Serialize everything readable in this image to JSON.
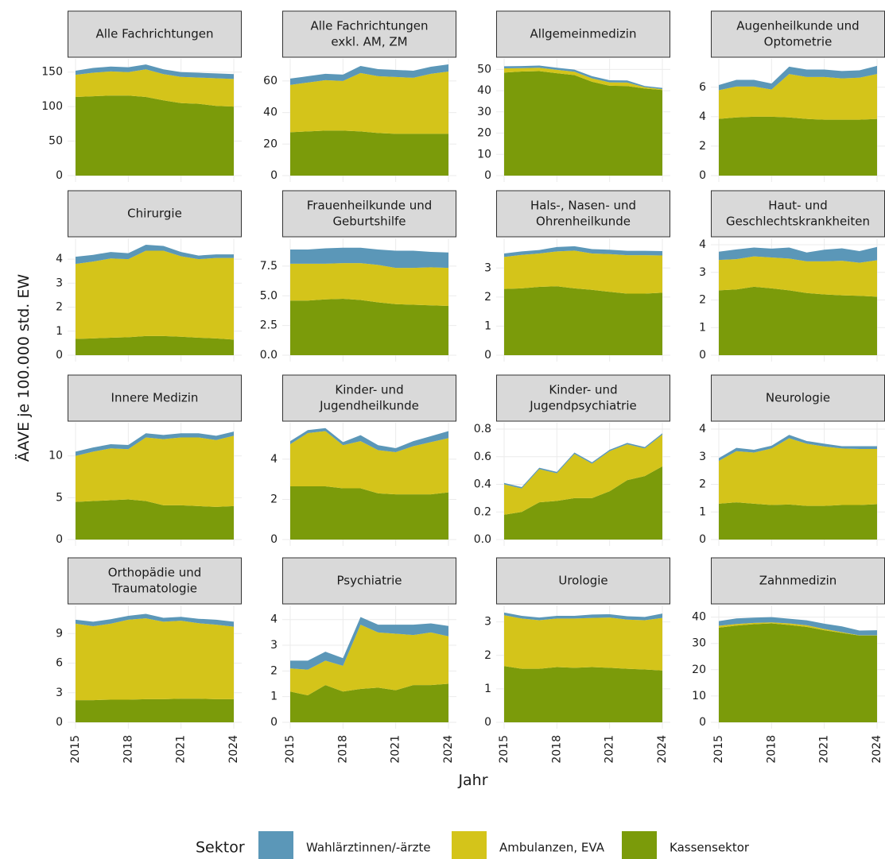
{
  "chart_data": {
    "type": "area",
    "stacked": true,
    "facet_layout": "4x4 grid, free y scales",
    "xlabel": "Jahr",
    "ylabel": "ÄAVE je 100.000 std. EW",
    "x": [
      2015,
      2016,
      2017,
      2018,
      2019,
      2020,
      2021,
      2022,
      2023,
      2024
    ],
    "x_ticks": [
      2015,
      2018,
      2021,
      2024
    ],
    "grid": true,
    "legend": {
      "title": "Sektor",
      "position": "bottom",
      "entries": [
        "Wahlärztinnen/-ärzte",
        "Ambulanzen, EVA",
        "Kassensektor"
      ]
    },
    "series_order": [
      "Kassensektor",
      "Ambulanzen, EVA",
      "Wahlärztinnen/-ärzte"
    ],
    "colors": {
      "Wahlärztinnen/-ärzte": "#5b97b8",
      "Ambulanzen, EVA": "#d4c41a",
      "Kassensektor": "#7b9b0a"
    },
    "panels": [
      {
        "title": [
          "Alle Fachrichtungen"
        ],
        "ylim": [
          0,
          160
        ],
        "yticks": [
          "0",
          "50",
          "100",
          "150"
        ],
        "series": [
          {
            "name": "Kassensektor",
            "values": [
              114,
              115,
              116,
              116,
              114,
              109,
              105,
              104,
              101,
              100
            ]
          },
          {
            "name": "Ambulanzen, EVA",
            "values": [
              32,
              34,
              35,
              34,
              40,
              38,
              38,
              38,
              40,
              40
            ]
          },
          {
            "name": "Wahlärztinnen/-ärzte",
            "values": [
              6,
              7,
              7,
              7,
              7,
              7,
              7,
              7,
              7,
              7
            ]
          }
        ]
      },
      {
        "title": [
          "Alle Fachrichtungen",
          "exkl. AM, ZM"
        ],
        "ylim": [
          0,
          70
        ],
        "yticks": [
          "0",
          "20",
          "40",
          "60"
        ],
        "series": [
          {
            "name": "Kassensektor",
            "values": [
              27.5,
              28,
              28.5,
              28.5,
              28,
              27,
              26.5,
              26.5,
              26.5,
              26.5
            ]
          },
          {
            "name": "Ambulanzen, EVA",
            "values": [
              30,
              31,
              32,
              31.5,
              37,
              36,
              36,
              35.5,
              38,
              39.5
            ]
          },
          {
            "name": "Wahlärztinnen/-ärzte",
            "values": [
              4,
              4,
              4,
              4,
              4.5,
              4.5,
              4.5,
              4.5,
              4.5,
              4.5
            ]
          }
        ]
      },
      {
        "title": [
          "Allgemeinmedizin"
        ],
        "ylim": [
          0,
          52
        ],
        "yticks": [
          "0",
          "10",
          "20",
          "30",
          "40",
          "50"
        ],
        "series": [
          {
            "name": "Kassensektor",
            "values": [
              48.5,
              49,
              49.2,
              48.2,
              47.3,
              44.2,
              42.3,
              42.2,
              41,
              40.3
            ]
          },
          {
            "name": "Ambulanzen, EVA",
            "values": [
              2,
              1.6,
              1.6,
              1.6,
              1.6,
              1.6,
              1.6,
              1.6,
              0.6,
              0.4
            ]
          },
          {
            "name": "Wahlärztinnen/-ärzte",
            "values": [
              1,
              1,
              1,
              1,
              1,
              1,
              1,
              1,
              0.6,
              0.6
            ]
          }
        ]
      },
      {
        "title": [
          "Augenheilkunde und",
          "Optometrie"
        ],
        "ylim": [
          0,
          7.5
        ],
        "yticks": [
          "0",
          "2",
          "4",
          "6"
        ],
        "series": [
          {
            "name": "Kassensektor",
            "values": [
              3.85,
              3.95,
              4.0,
              4.0,
              3.95,
              3.85,
              3.8,
              3.8,
              3.8,
              3.85
            ]
          },
          {
            "name": "Ambulanzen, EVA",
            "values": [
              1.95,
              2.1,
              2.05,
              1.85,
              2.95,
              2.85,
              2.9,
              2.8,
              2.85,
              3.05
            ]
          },
          {
            "name": "Wahlärztinnen/-ärzte",
            "values": [
              0.35,
              0.45,
              0.45,
              0.4,
              0.5,
              0.5,
              0.5,
              0.5,
              0.5,
              0.55
            ]
          }
        ]
      },
      {
        "title": [
          "Chirurgie"
        ],
        "ylim": [
          0,
          4.6
        ],
        "yticks": [
          "0",
          "1",
          "2",
          "3",
          "4"
        ],
        "series": [
          {
            "name": "Kassensektor",
            "values": [
              0.68,
              0.7,
              0.73,
              0.75,
              0.8,
              0.8,
              0.77,
              0.73,
              0.7,
              0.65
            ]
          },
          {
            "name": "Ambulanzen, EVA",
            "values": [
              3.12,
              3.2,
              3.3,
              3.25,
              3.55,
              3.55,
              3.35,
              3.27,
              3.35,
              3.4
            ]
          },
          {
            "name": "Wahlärztinnen/-ärzte",
            "values": [
              0.3,
              0.28,
              0.27,
              0.25,
              0.25,
              0.2,
              0.18,
              0.15,
              0.15,
              0.15
            ]
          }
        ]
      },
      {
        "title": [
          "Frauenheilkunde und",
          "Geburtshilfe"
        ],
        "ylim": [
          0,
          9.3
        ],
        "yticks": [
          "0.0",
          "2.5",
          "5.0",
          "7.5"
        ],
        "series": [
          {
            "name": "Kassensektor",
            "values": [
              4.6,
              4.6,
              4.7,
              4.75,
              4.65,
              4.45,
              4.3,
              4.25,
              4.2,
              4.15
            ]
          },
          {
            "name": "Ambulanzen, EVA",
            "values": [
              3.1,
              3.1,
              3.0,
              3.0,
              3.1,
              3.15,
              3.05,
              3.1,
              3.2,
              3.2
            ]
          },
          {
            "name": "Wahlärztinnen/-ärzte",
            "values": [
              1.2,
              1.2,
              1.3,
              1.3,
              1.3,
              1.3,
              1.45,
              1.45,
              1.3,
              1.3
            ]
          }
        ]
      },
      {
        "title": [
          "Hals-, Nasen- und",
          "Ohrenheilkunde"
        ],
        "ylim": [
          0,
          3.8
        ],
        "yticks": [
          "0",
          "1",
          "2",
          "3"
        ],
        "series": [
          {
            "name": "Kassensektor",
            "values": [
              2.28,
              2.3,
              2.35,
              2.37,
              2.3,
              2.25,
              2.18,
              2.12,
              2.12,
              2.15
            ]
          },
          {
            "name": "Ambulanzen, EVA",
            "values": [
              1.1,
              1.15,
              1.15,
              1.2,
              1.3,
              1.25,
              1.3,
              1.32,
              1.32,
              1.28
            ]
          },
          {
            "name": "Wahlärztinnen/-ärzte",
            "values": [
              0.12,
              0.12,
              0.12,
              0.15,
              0.15,
              0.15,
              0.15,
              0.15,
              0.15,
              0.15
            ]
          }
        ]
      },
      {
        "title": [
          "Haut- und",
          "Geschlechtskrankheiten"
        ],
        "ylim": [
          0,
          4
        ],
        "yticks": [
          "0",
          "1",
          "2",
          "3",
          "4"
        ],
        "series": [
          {
            "name": "Kassensektor",
            "values": [
              2.35,
              2.38,
              2.48,
              2.42,
              2.35,
              2.25,
              2.2,
              2.17,
              2.15,
              2.12
            ]
          },
          {
            "name": "Ambulanzen, EVA",
            "values": [
              1.1,
              1.1,
              1.1,
              1.12,
              1.15,
              1.15,
              1.2,
              1.25,
              1.2,
              1.32
            ]
          },
          {
            "name": "Wahlärztinnen/-ärzte",
            "values": [
              0.3,
              0.35,
              0.32,
              0.32,
              0.4,
              0.32,
              0.42,
              0.45,
              0.42,
              0.48
            ]
          }
        ]
      },
      {
        "title": [
          "Innere Medizin"
        ],
        "ylim": [
          0,
          13.2
        ],
        "yticks": [
          "0",
          "5",
          "10"
        ],
        "series": [
          {
            "name": "Kassensektor",
            "values": [
              4.5,
              4.6,
              4.7,
              4.8,
              4.6,
              4.1,
              4.1,
              4.0,
              3.9,
              4.0
            ]
          },
          {
            "name": "Ambulanzen, EVA",
            "values": [
              5.5,
              5.9,
              6.2,
              6.0,
              7.6,
              7.9,
              8.1,
              8.2,
              8.0,
              8.4
            ]
          },
          {
            "name": "Wahlärztinnen/-ärzte",
            "values": [
              0.5,
              0.5,
              0.5,
              0.5,
              0.5,
              0.5,
              0.5,
              0.5,
              0.5,
              0.5
            ]
          }
        ]
      },
      {
        "title": [
          "Kinder- und",
          "Jugendheilkunde"
        ],
        "ylim": [
          0,
          5.5
        ],
        "yticks": [
          "0",
          "2",
          "4"
        ],
        "series": [
          {
            "name": "Kassensektor",
            "values": [
              2.65,
              2.65,
              2.65,
              2.55,
              2.55,
              2.3,
              2.25,
              2.25,
              2.25,
              2.35
            ]
          },
          {
            "name": "Ambulanzen, EVA",
            "values": [
              2.1,
              2.65,
              2.75,
              2.15,
              2.35,
              2.15,
              2.1,
              2.4,
              2.6,
              2.7
            ]
          },
          {
            "name": "Wahlärztinnen/-ärzte",
            "values": [
              0.15,
              0.15,
              0.15,
              0.15,
              0.3,
              0.25,
              0.2,
              0.25,
              0.3,
              0.35
            ]
          }
        ]
      },
      {
        "title": [
          "Kinder- und",
          "Jugendpsychiatrie"
        ],
        "ylim": [
          0,
          0.8
        ],
        "yticks": [
          "0.0",
          "0.2",
          "0.4",
          "0.6",
          "0.8"
        ],
        "series": [
          {
            "name": "Kassensektor",
            "values": [
              0.18,
              0.2,
              0.27,
              0.28,
              0.3,
              0.3,
              0.35,
              0.43,
              0.46,
              0.53
            ]
          },
          {
            "name": "Ambulanzen, EVA",
            "values": [
              0.22,
              0.17,
              0.24,
              0.2,
              0.32,
              0.25,
              0.29,
              0.26,
              0.2,
              0.23
            ]
          },
          {
            "name": "Wahlärztinnen/-ärzte",
            "values": [
              0.01,
              0.01,
              0.01,
              0.01,
              0.01,
              0.01,
              0.01,
              0.01,
              0.01,
              0.01
            ]
          }
        ]
      },
      {
        "title": [
          "Neurologie"
        ],
        "ylim": [
          0,
          4
        ],
        "yticks": [
          "0",
          "1",
          "2",
          "3",
          "4"
        ],
        "series": [
          {
            "name": "Kassensektor",
            "values": [
              1.3,
              1.35,
              1.3,
              1.25,
              1.27,
              1.22,
              1.22,
              1.25,
              1.25,
              1.28
            ]
          },
          {
            "name": "Ambulanzen, EVA",
            "values": [
              1.55,
              1.85,
              1.85,
              2.05,
              2.4,
              2.25,
              2.15,
              2.05,
              2.03,
              2.0
            ]
          },
          {
            "name": "Wahlärztinnen/-ärzte",
            "values": [
              0.1,
              0.12,
              0.1,
              0.1,
              0.12,
              0.1,
              0.1,
              0.08,
              0.1,
              0.1
            ]
          }
        ]
      },
      {
        "title": [
          "Orthopädie und",
          "Traumatologie"
        ],
        "ylim": [
          0,
          11.2
        ],
        "yticks": [
          "0",
          "3",
          "6",
          "9"
        ],
        "series": [
          {
            "name": "Kassensektor",
            "values": [
              2.25,
              2.25,
              2.3,
              2.3,
              2.35,
              2.35,
              2.4,
              2.4,
              2.35,
              2.35
            ]
          },
          {
            "name": "Ambulanzen, EVA",
            "values": [
              7.75,
              7.5,
              7.7,
              8.1,
              8.2,
              7.85,
              7.9,
              7.65,
              7.55,
              7.35
            ]
          },
          {
            "name": "Wahlärztinnen/-ärzte",
            "values": [
              0.4,
              0.45,
              0.45,
              0.4,
              0.45,
              0.4,
              0.4,
              0.45,
              0.5,
              0.5
            ]
          }
        ]
      },
      {
        "title": [
          "Psychiatrie"
        ],
        "ylim": [
          0,
          4.3
        ],
        "yticks": [
          "0",
          "1",
          "2",
          "3",
          "4"
        ],
        "series": [
          {
            "name": "Kassensektor",
            "values": [
              1.2,
              1.05,
              1.45,
              1.2,
              1.3,
              1.35,
              1.25,
              1.45,
              1.45,
              1.5
            ]
          },
          {
            "name": "Ambulanzen, EVA",
            "values": [
              0.9,
              1.0,
              0.95,
              1.0,
              2.5,
              2.15,
              2.2,
              1.95,
              2.05,
              1.85
            ]
          },
          {
            "name": "Wahlärztinnen/-ärzte",
            "values": [
              0.3,
              0.35,
              0.35,
              0.3,
              0.3,
              0.3,
              0.35,
              0.4,
              0.35,
              0.4
            ]
          }
        ]
      },
      {
        "title": [
          "Urologie"
        ],
        "ylim": [
          0,
          3.3
        ],
        "yticks": [
          "0",
          "1",
          "2",
          "3"
        ],
        "series": [
          {
            "name": "Kassensektor",
            "values": [
              1.68,
              1.6,
              1.6,
              1.65,
              1.63,
              1.65,
              1.63,
              1.6,
              1.58,
              1.55
            ]
          },
          {
            "name": "Ambulanzen, EVA",
            "values": [
              1.52,
              1.5,
              1.45,
              1.45,
              1.47,
              1.47,
              1.5,
              1.47,
              1.47,
              1.57
            ]
          },
          {
            "name": "Wahlärztinnen/-ärzte",
            "values": [
              0.08,
              0.08,
              0.08,
              0.08,
              0.08,
              0.1,
              0.1,
              0.1,
              0.1,
              0.13
            ]
          }
        ]
      },
      {
        "title": [
          "Zahnmedizin"
        ],
        "ylim": [
          0,
          42
        ],
        "yticks": [
          "0",
          "10",
          "20",
          "30",
          "40"
        ],
        "series": [
          {
            "name": "Kassensektor",
            "values": [
              36,
              36.8,
              37.3,
              37.6,
              37,
              36.3,
              35,
              34,
              33,
              33
            ]
          },
          {
            "name": "Ambulanzen, EVA",
            "values": [
              0.7,
              0.6,
              0.5,
              0.4,
              0.6,
              0.6,
              0.5,
              0.3,
              0.1,
              0.1
            ]
          },
          {
            "name": "Wahlärztinnen/-ärzte",
            "values": [
              1.8,
              2.1,
              2.0,
              2.0,
              1.8,
              1.9,
              2.0,
              2.2,
              1.8,
              1.9
            ]
          }
        ]
      }
    ]
  }
}
